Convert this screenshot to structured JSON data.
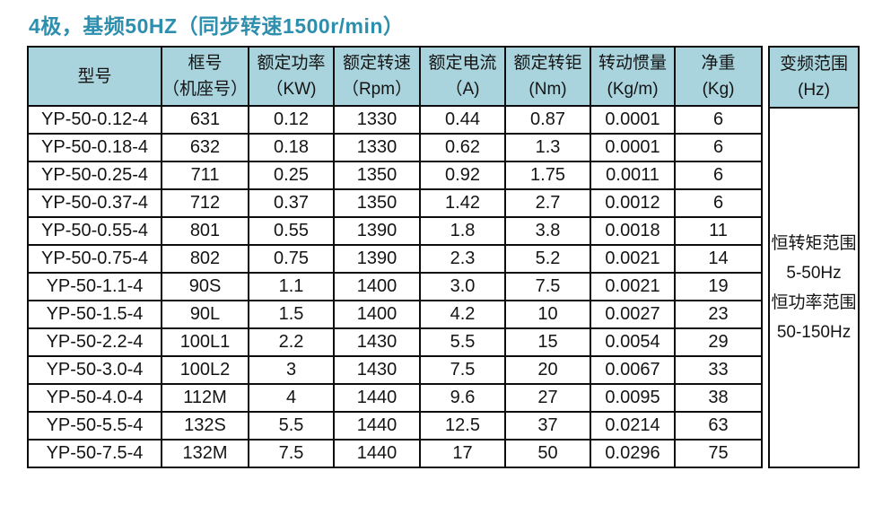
{
  "page": {
    "title": "4极，基频50HZ（同步转速1500r/min）"
  },
  "colors": {
    "title_text": "#2d8fad",
    "header_bg": "#a9d4dd",
    "border": "#0d0d0d",
    "body_text": "#141414",
    "page_bg": "#ffffff"
  },
  "table": {
    "columns": [
      {
        "name": "型号",
        "unit": ""
      },
      {
        "name": "框号",
        "unit": "（机座号）"
      },
      {
        "name": "额定功率",
        "unit": "（KW)"
      },
      {
        "name": "额定转速",
        "unit": "（Rpm）"
      },
      {
        "name": "额定电流",
        "unit": "（A)"
      },
      {
        "name": "额定转钜",
        "unit": "(Nm)"
      },
      {
        "name": "转动惯量",
        "unit": "(Kg/m)"
      },
      {
        "name": "净重",
        "unit": "(Kg)"
      },
      {
        "name": "变频范围",
        "unit": "(Hz)"
      }
    ],
    "rows": [
      {
        "model": "YP-50-0.12-4",
        "frame": "631",
        "power": "0.12",
        "speed": "1330",
        "current": "0.44",
        "torque": "0.87",
        "inertia": "0.0001",
        "weight": "6"
      },
      {
        "model": "YP-50-0.18-4",
        "frame": "632",
        "power": "0.18",
        "speed": "1330",
        "current": "0.62",
        "torque": "1.3",
        "inertia": "0.0001",
        "weight": "6"
      },
      {
        "model": "YP-50-0.25-4",
        "frame": "711",
        "power": "0.25",
        "speed": "1350",
        "current": "0.92",
        "torque": "1.75",
        "inertia": "0.0011",
        "weight": "6"
      },
      {
        "model": "YP-50-0.37-4",
        "frame": "712",
        "power": "0.37",
        "speed": "1350",
        "current": "1.42",
        "torque": "2.7",
        "inertia": "0.0012",
        "weight": "6"
      },
      {
        "model": "YP-50-0.55-4",
        "frame": "801",
        "power": "0.55",
        "speed": "1390",
        "current": "1.8",
        "torque": "3.8",
        "inertia": "0.0018",
        "weight": "11"
      },
      {
        "model": "YP-50-0.75-4",
        "frame": "802",
        "power": "0.75",
        "speed": "1390",
        "current": "2.3",
        "torque": "5.2",
        "inertia": "0.0021",
        "weight": "14"
      },
      {
        "model": "YP-50-1.1-4",
        "frame": "90S",
        "power": "1.1",
        "speed": "1400",
        "current": "3.0",
        "torque": "7.5",
        "inertia": "0.0021",
        "weight": "19"
      },
      {
        "model": "YP-50-1.5-4",
        "frame": "90L",
        "power": "1.5",
        "speed": "1400",
        "current": "4.2",
        "torque": "10",
        "inertia": "0.0027",
        "weight": "23"
      },
      {
        "model": "YP-50-2.2-4",
        "frame": "100L1",
        "power": "2.2",
        "speed": "1430",
        "current": "5.5",
        "torque": "15",
        "inertia": "0.0054",
        "weight": "29"
      },
      {
        "model": "YP-50-3.0-4",
        "frame": "100L2",
        "power": "3",
        "speed": "1430",
        "current": "7.5",
        "torque": "20",
        "inertia": "0.0067",
        "weight": "33"
      },
      {
        "model": "YP-50-4.0-4",
        "frame": "112M",
        "power": "4",
        "speed": "1440",
        "current": "9.6",
        "torque": "27",
        "inertia": "0.0095",
        "weight": "38"
      },
      {
        "model": "YP-50-5.5-4",
        "frame": "132S",
        "power": "5.5",
        "speed": "1440",
        "current": "12.5",
        "torque": "37",
        "inertia": "0.0214",
        "weight": "63"
      },
      {
        "model": "YP-50-7.5-4",
        "frame": "132M",
        "power": "7.5",
        "speed": "1440",
        "current": "17",
        "torque": "50",
        "inertia": "0.0296",
        "weight": "75"
      }
    ],
    "frequency_range_note": {
      "lines": [
        "恒转矩范围",
        "5-50Hz",
        "恒功率范围",
        "50-150Hz"
      ]
    }
  }
}
